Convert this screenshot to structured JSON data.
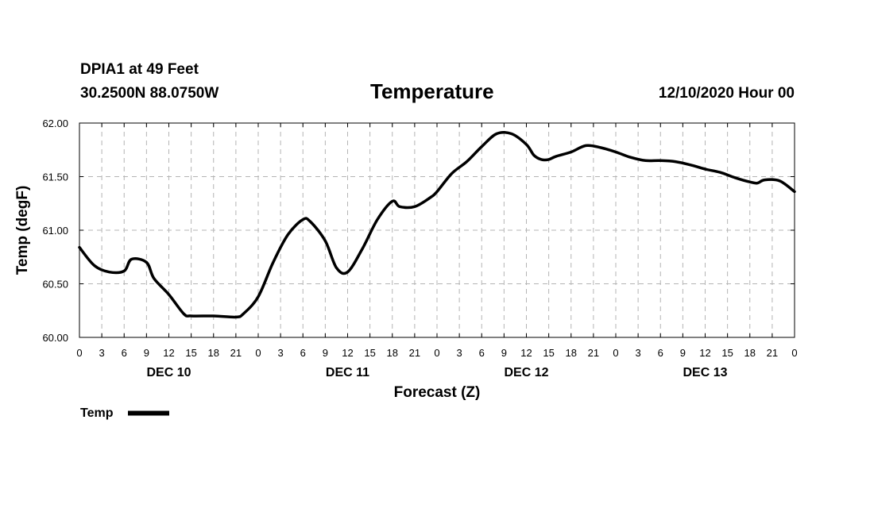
{
  "header": {
    "station": "DPIA1 at 49 Feet",
    "coords": "30.2500N 88.0750W",
    "title": "Temperature",
    "stamp": "12/10/2020 Hour 00"
  },
  "chart_data": {
    "type": "line",
    "title": "Temperature",
    "xlabel": "Forecast (Z)",
    "ylabel": "Temp (degF)",
    "ylim": [
      60.0,
      62.0
    ],
    "y_ticks": [
      "60.00",
      "60.50",
      "61.00",
      "61.50",
      "62.00"
    ],
    "x_range_hours": [
      0,
      96
    ],
    "x_tick_labels": [
      "0",
      "3",
      "6",
      "9",
      "12",
      "15",
      "18",
      "21",
      "0",
      "3",
      "6",
      "9",
      "12",
      "15",
      "18",
      "21",
      "0",
      "3",
      "6",
      "9",
      "12",
      "15",
      "18",
      "21",
      "0",
      "3",
      "6",
      "9",
      "12",
      "15",
      "18",
      "21",
      "0"
    ],
    "day_labels": [
      {
        "label": "DEC 10",
        "hour": 12
      },
      {
        "label": "DEC 11",
        "hour": 36
      },
      {
        "label": "DEC 12",
        "hour": 60
      },
      {
        "label": "DEC 13",
        "hour": 84
      }
    ],
    "grid": true,
    "legend": "bottom-left",
    "series": [
      {
        "name": "Temp",
        "x": [
          0,
          2,
          4,
          6,
          7,
          9,
          10,
          12,
          14,
          15,
          18,
          21,
          22,
          24,
          26,
          28,
          30,
          31,
          33,
          34.5,
          36,
          38,
          40,
          42,
          43,
          45,
          47,
          48,
          50,
          52,
          54,
          56,
          58,
          60,
          61,
          62,
          63,
          64,
          66,
          68,
          70,
          72,
          74,
          76,
          78,
          80,
          82,
          84,
          86,
          88,
          90,
          91,
          92,
          94,
          96
        ],
        "values": [
          60.84,
          60.67,
          60.61,
          60.62,
          60.73,
          60.7,
          60.55,
          60.4,
          60.22,
          60.2,
          60.2,
          60.19,
          60.22,
          60.38,
          60.7,
          60.96,
          61.1,
          61.08,
          60.9,
          60.65,
          60.61,
          60.83,
          61.1,
          61.27,
          61.22,
          61.22,
          61.3,
          61.36,
          61.53,
          61.64,
          61.78,
          61.9,
          61.9,
          61.8,
          61.7,
          61.66,
          61.66,
          61.69,
          61.73,
          61.79,
          61.77,
          61.73,
          61.68,
          61.65,
          61.65,
          61.64,
          61.61,
          61.57,
          61.54,
          61.49,
          61.45,
          61.44,
          61.47,
          61.46,
          61.36
        ]
      }
    ]
  }
}
